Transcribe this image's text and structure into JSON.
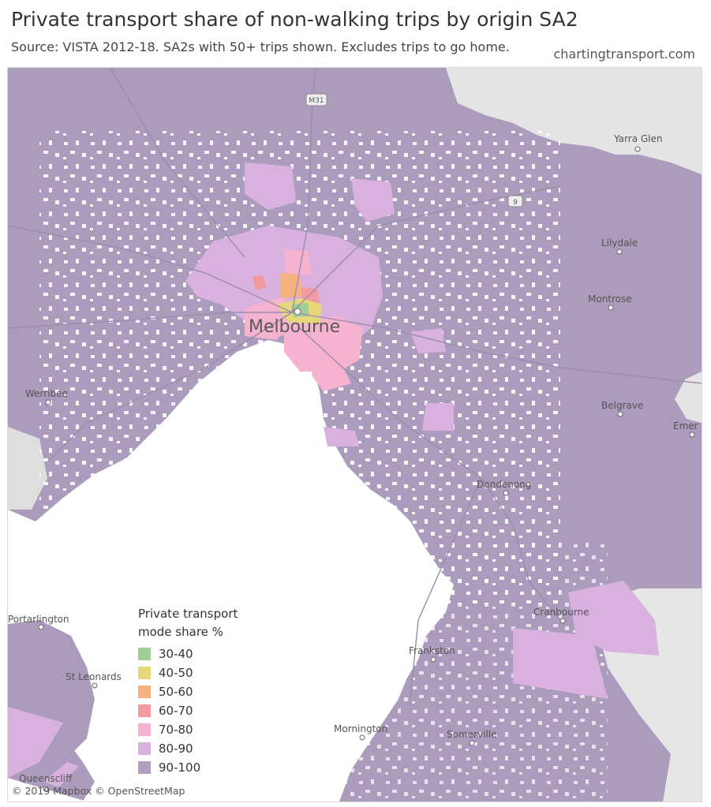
{
  "header": {
    "title": "Private transport share of non-walking trips by origin SA2",
    "subtitle": "Source: VISTA 2012-18. SA2s with 50+ trips shown. Excludes trips to go home.",
    "site": "chartingtransport.com"
  },
  "legend": {
    "title_line1": "Private transport",
    "title_line2": "mode share %",
    "items": [
      {
        "label": "30-40",
        "color": "#9fcf97"
      },
      {
        "label": "40-50",
        "color": "#e6d77a"
      },
      {
        "label": "50-60",
        "color": "#f5b27e"
      },
      {
        "label": "60-70",
        "color": "#f29a9f"
      },
      {
        "label": "70-80",
        "color": "#f6b3cf"
      },
      {
        "label": "80-90",
        "color": "#d9b1de"
      },
      {
        "label": "90-100",
        "color": "#b49ec1"
      }
    ]
  },
  "places": {
    "melbourne": "Melbourne",
    "yarra_glen": "Yarra Glen",
    "lilydale": "Lilydale",
    "montrose": "Montrose",
    "belgrave": "Belgrave",
    "emerald": "Emer",
    "werribee": "Werribee",
    "dandenong": "Dandenong",
    "cranbourne": "Cranbourne",
    "frankston": "Frankston",
    "mornington": "Mornington",
    "somerville": "Somerville",
    "portarlington": "Portarlington",
    "st_leonards": "St Leonards",
    "queenscliff": "Queenscliff"
  },
  "roads": {
    "m31": "M31",
    "route9": "9"
  },
  "attribution": "© 2019 Mapbox © OpenStreetMap"
}
